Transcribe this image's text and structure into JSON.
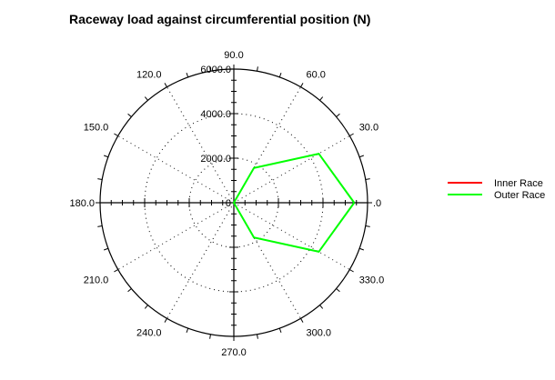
{
  "chart_data": {
    "type": "polar",
    "title": "Raceway load against circumferential position (N)",
    "radial_axis": {
      "range": [
        0,
        6000
      ],
      "tick_values": [
        0,
        2000,
        4000,
        6000
      ],
      "tick_labels": [
        "0",
        "2000.0",
        "4000.0",
        "6000.0"
      ],
      "grid": "dotted"
    },
    "angular_axis": {
      "unit": "degrees",
      "tick_values": [
        0,
        30,
        60,
        90,
        120,
        150,
        180,
        210,
        240,
        270,
        300,
        330
      ],
      "tick_labels": [
        ".0",
        "30.0",
        "60.0",
        "90.0",
        "120.0",
        "150.0",
        "180.0",
        "210.0",
        "240.0",
        "270.0",
        "300.0",
        "330.0"
      ],
      "grid": "dotted"
    },
    "series": [
      {
        "name": "Inner Race",
        "color": "#ff0000",
        "points": []
      },
      {
        "name": "Outer Race",
        "color": "#00ff00",
        "points": [
          {
            "angle": 0,
            "r": 5400
          },
          {
            "angle": 30,
            "r": 4400
          },
          {
            "angle": 60,
            "r": 1800
          },
          {
            "angle": 90,
            "r": 0
          },
          {
            "angle": 270,
            "r": 0
          },
          {
            "angle": 300,
            "r": 1800
          },
          {
            "angle": 330,
            "r": 4400
          },
          {
            "angle": 360,
            "r": 5400
          }
        ]
      }
    ],
    "legend": {
      "position": "right",
      "entries": [
        "Inner Race",
        "Outer Race"
      ]
    }
  }
}
